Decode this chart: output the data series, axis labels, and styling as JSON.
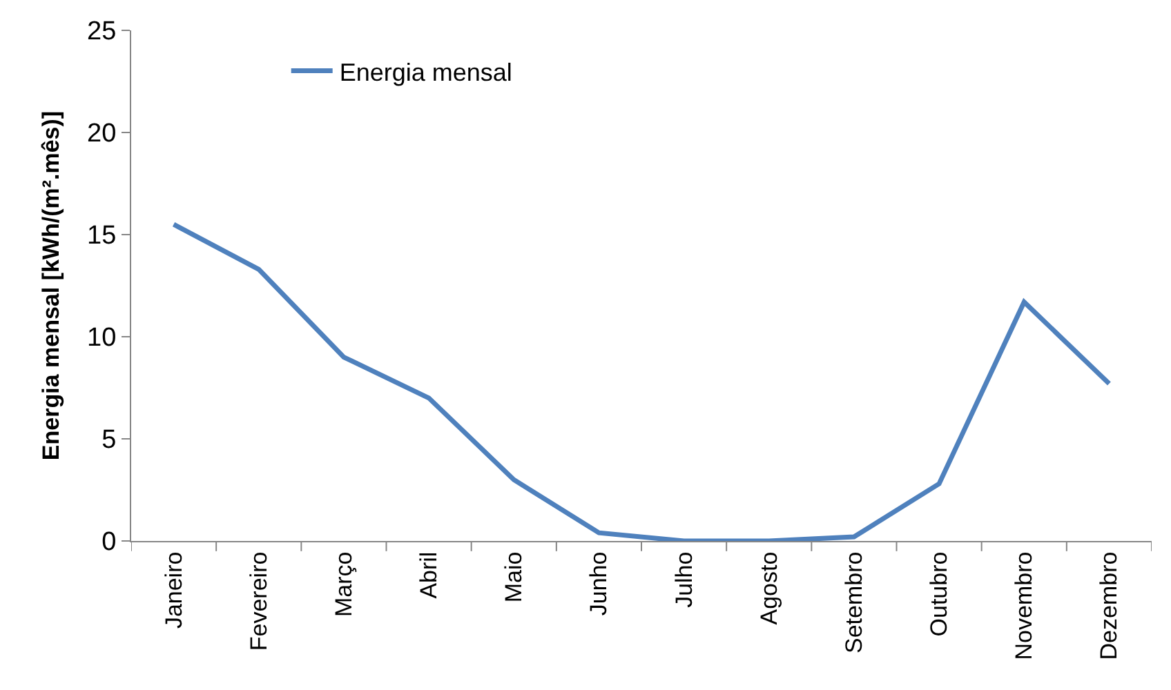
{
  "chart_data": {
    "type": "line",
    "ylabel": "Energia mensal [kWh/(m².mês)]",
    "categories": [
      "Janeiro",
      "Fevereiro",
      "Março",
      "Abril",
      "Maio",
      "Junho",
      "Julho",
      "Agosto",
      "Setembro",
      "Outubro",
      "Novembro",
      "Dezembro"
    ],
    "series": [
      {
        "name": "Energia mensal",
        "color": "#4f81bd",
        "values": [
          15.5,
          13.3,
          9.0,
          7.0,
          3.0,
          0.4,
          0.0,
          0.0,
          0.2,
          2.8,
          11.7,
          7.7
        ]
      }
    ],
    "ylim": [
      0,
      25
    ],
    "yticks": [
      0,
      5,
      10,
      15,
      20,
      25
    ],
    "legend": "top left",
    "marker": "none",
    "line_style": "solid"
  }
}
